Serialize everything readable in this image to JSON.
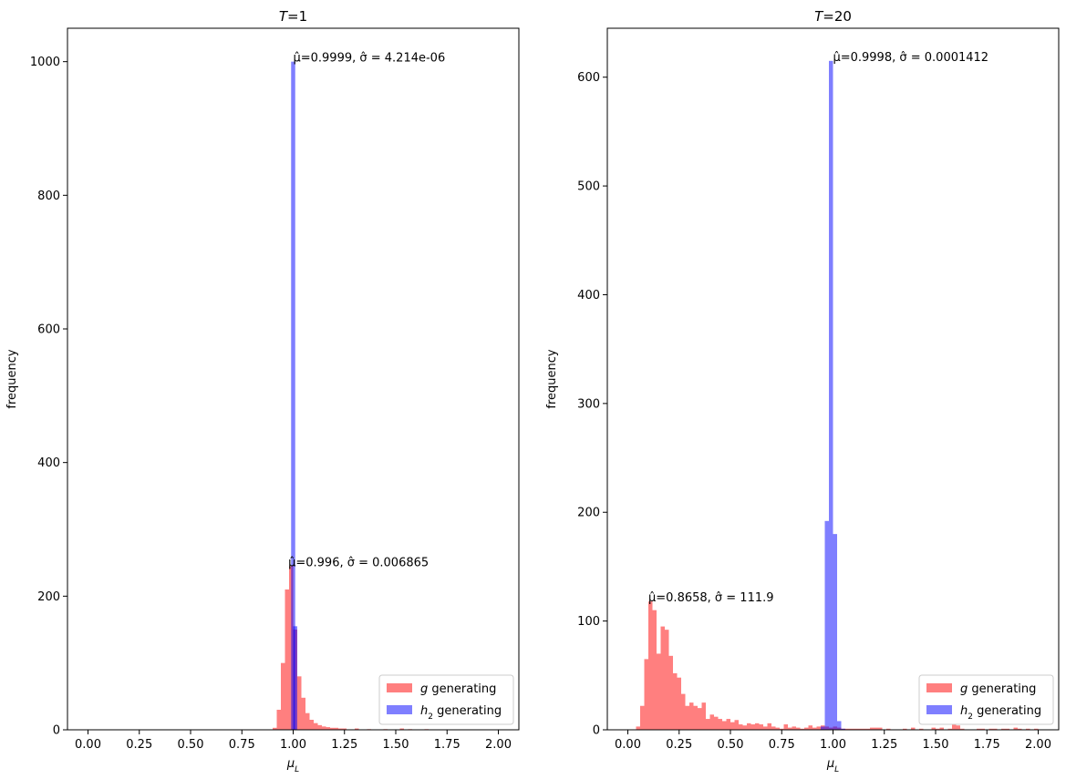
{
  "chart_data": [
    {
      "type": "histogram",
      "title": "T=1",
      "xlabel": "μ_L",
      "ylabel": "frequency",
      "xlim": [
        -0.1,
        2.1
      ],
      "ylim": [
        0,
        1050
      ],
      "xticks": [
        0.0,
        0.25,
        0.5,
        0.75,
        1.0,
        1.25,
        1.5,
        1.75,
        2.0
      ],
      "xtick_labels": [
        "0.00",
        "0.25",
        "0.50",
        "0.75",
        "1.00",
        "1.25",
        "1.50",
        "1.75",
        "2.00"
      ],
      "yticks": [
        0,
        200,
        400,
        600,
        800,
        1000
      ],
      "ytick_labels": [
        "0",
        "200",
        "400",
        "600",
        "800",
        "1000"
      ],
      "legend_position": "lower right",
      "series": [
        {
          "name": "g generating",
          "color": "#ff0000",
          "alpha": 0.5,
          "bin_width": 0.02,
          "bins": [
            [
              0.9,
              3
            ],
            [
              0.92,
              30
            ],
            [
              0.94,
              100
            ],
            [
              0.96,
              210
            ],
            [
              0.98,
              245
            ],
            [
              1.0,
              150
            ],
            [
              1.02,
              80
            ],
            [
              1.04,
              48
            ],
            [
              1.06,
              25
            ],
            [
              1.08,
              15
            ],
            [
              1.1,
              10
            ],
            [
              1.12,
              7
            ],
            [
              1.14,
              5
            ],
            [
              1.16,
              4
            ],
            [
              1.18,
              3
            ],
            [
              1.2,
              3
            ],
            [
              1.22,
              2
            ],
            [
              1.24,
              2
            ],
            [
              1.3,
              2
            ],
            [
              1.36,
              1
            ],
            [
              1.44,
              1
            ],
            [
              1.52,
              2
            ],
            [
              1.56,
              1
            ],
            [
              1.64,
              1
            ]
          ]
        },
        {
          "name": "h_2 generating",
          "color": "#0000ff",
          "alpha": 0.5,
          "bin_width": 0.02,
          "bins": [
            [
              0.99,
              1000
            ],
            [
              1.0,
              155
            ]
          ]
        }
      ],
      "annotations": [
        {
          "text": "μ̂=0.9999, σ̂ = 4.214e-06",
          "x": 0.9999,
          "y": 1000
        },
        {
          "text": "μ̂=0.996, σ̂ = 0.006865",
          "x": 0.976,
          "y": 245
        }
      ]
    },
    {
      "type": "histogram",
      "title": "T=20",
      "xlabel": "μ_L",
      "ylabel": "frequency",
      "xlim": [
        -0.1,
        2.1
      ],
      "ylim": [
        0,
        645
      ],
      "xticks": [
        0.0,
        0.25,
        0.5,
        0.75,
        1.0,
        1.25,
        1.5,
        1.75,
        2.0
      ],
      "xtick_labels": [
        "0.00",
        "0.25",
        "0.50",
        "0.75",
        "1.00",
        "1.25",
        "1.50",
        "1.75",
        "2.00"
      ],
      "yticks": [
        0,
        100,
        200,
        300,
        400,
        500,
        600
      ],
      "ytick_labels": [
        "0",
        "100",
        "200",
        "300",
        "400",
        "500",
        "600"
      ],
      "legend_position": "lower right",
      "series": [
        {
          "name": "g generating",
          "color": "#ff0000",
          "alpha": 0.5,
          "bin_width": 0.02,
          "bins": [
            [
              0.04,
              3
            ],
            [
              0.06,
              22
            ],
            [
              0.08,
              65
            ],
            [
              0.1,
              118
            ],
            [
              0.12,
              110
            ],
            [
              0.14,
              70
            ],
            [
              0.16,
              95
            ],
            [
              0.18,
              92
            ],
            [
              0.2,
              68
            ],
            [
              0.22,
              52
            ],
            [
              0.24,
              48
            ],
            [
              0.26,
              33
            ],
            [
              0.28,
              22
            ],
            [
              0.3,
              25
            ],
            [
              0.32,
              22
            ],
            [
              0.34,
              20
            ],
            [
              0.36,
              25
            ],
            [
              0.38,
              10
            ],
            [
              0.4,
              14
            ],
            [
              0.42,
              12
            ],
            [
              0.44,
              10
            ],
            [
              0.46,
              8
            ],
            [
              0.48,
              10
            ],
            [
              0.5,
              7
            ],
            [
              0.52,
              9
            ],
            [
              0.54,
              5
            ],
            [
              0.56,
              4
            ],
            [
              0.58,
              6
            ],
            [
              0.6,
              5
            ],
            [
              0.62,
              6
            ],
            [
              0.64,
              5
            ],
            [
              0.66,
              3
            ],
            [
              0.68,
              6
            ],
            [
              0.7,
              3
            ],
            [
              0.72,
              2
            ],
            [
              0.74,
              1
            ],
            [
              0.76,
              5
            ],
            [
              0.78,
              2
            ],
            [
              0.8,
              3
            ],
            [
              0.82,
              2
            ],
            [
              0.84,
              1
            ],
            [
              0.86,
              2
            ],
            [
              0.88,
              4
            ],
            [
              0.9,
              2
            ],
            [
              0.92,
              3
            ],
            [
              0.94,
              4
            ],
            [
              0.96,
              3
            ],
            [
              0.98,
              2
            ],
            [
              1.0,
              3
            ],
            [
              1.02,
              2
            ],
            [
              1.04,
              1
            ],
            [
              1.06,
              1
            ],
            [
              1.08,
              1
            ],
            [
              1.1,
              1
            ],
            [
              1.12,
              1
            ],
            [
              1.14,
              1
            ],
            [
              1.16,
              1
            ],
            [
              1.18,
              2
            ],
            [
              1.2,
              2
            ],
            [
              1.22,
              2
            ],
            [
              1.26,
              1
            ],
            [
              1.34,
              1
            ],
            [
              1.38,
              2
            ],
            [
              1.42,
              1
            ],
            [
              1.48,
              2
            ],
            [
              1.5,
              1
            ],
            [
              1.52,
              2
            ],
            [
              1.56,
              1
            ],
            [
              1.58,
              5
            ],
            [
              1.6,
              4
            ],
            [
              1.62,
              1
            ],
            [
              1.7,
              1
            ],
            [
              1.72,
              1
            ],
            [
              1.76,
              1
            ],
            [
              1.78,
              1
            ],
            [
              1.82,
              1
            ],
            [
              1.84,
              1
            ],
            [
              1.88,
              2
            ],
            [
              1.9,
              1
            ],
            [
              1.94,
              1
            ],
            [
              1.98,
              1
            ]
          ]
        },
        {
          "name": "h_2 generating",
          "color": "#0000ff",
          "alpha": 0.5,
          "bin_width": 0.02,
          "bins": [
            [
              0.94,
              3
            ],
            [
              0.96,
              192
            ],
            [
              0.98,
              615
            ],
            [
              1.0,
              180
            ],
            [
              1.02,
              8
            ],
            [
              1.04,
              1
            ]
          ]
        }
      ],
      "annotations": [
        {
          "text": "μ̂=0.9998, σ̂ = 0.0001412",
          "x": 0.9998,
          "y": 615
        },
        {
          "text": "μ̂=0.8658, σ̂ = 111.9",
          "x": 0.1,
          "y": 118
        }
      ]
    }
  ]
}
